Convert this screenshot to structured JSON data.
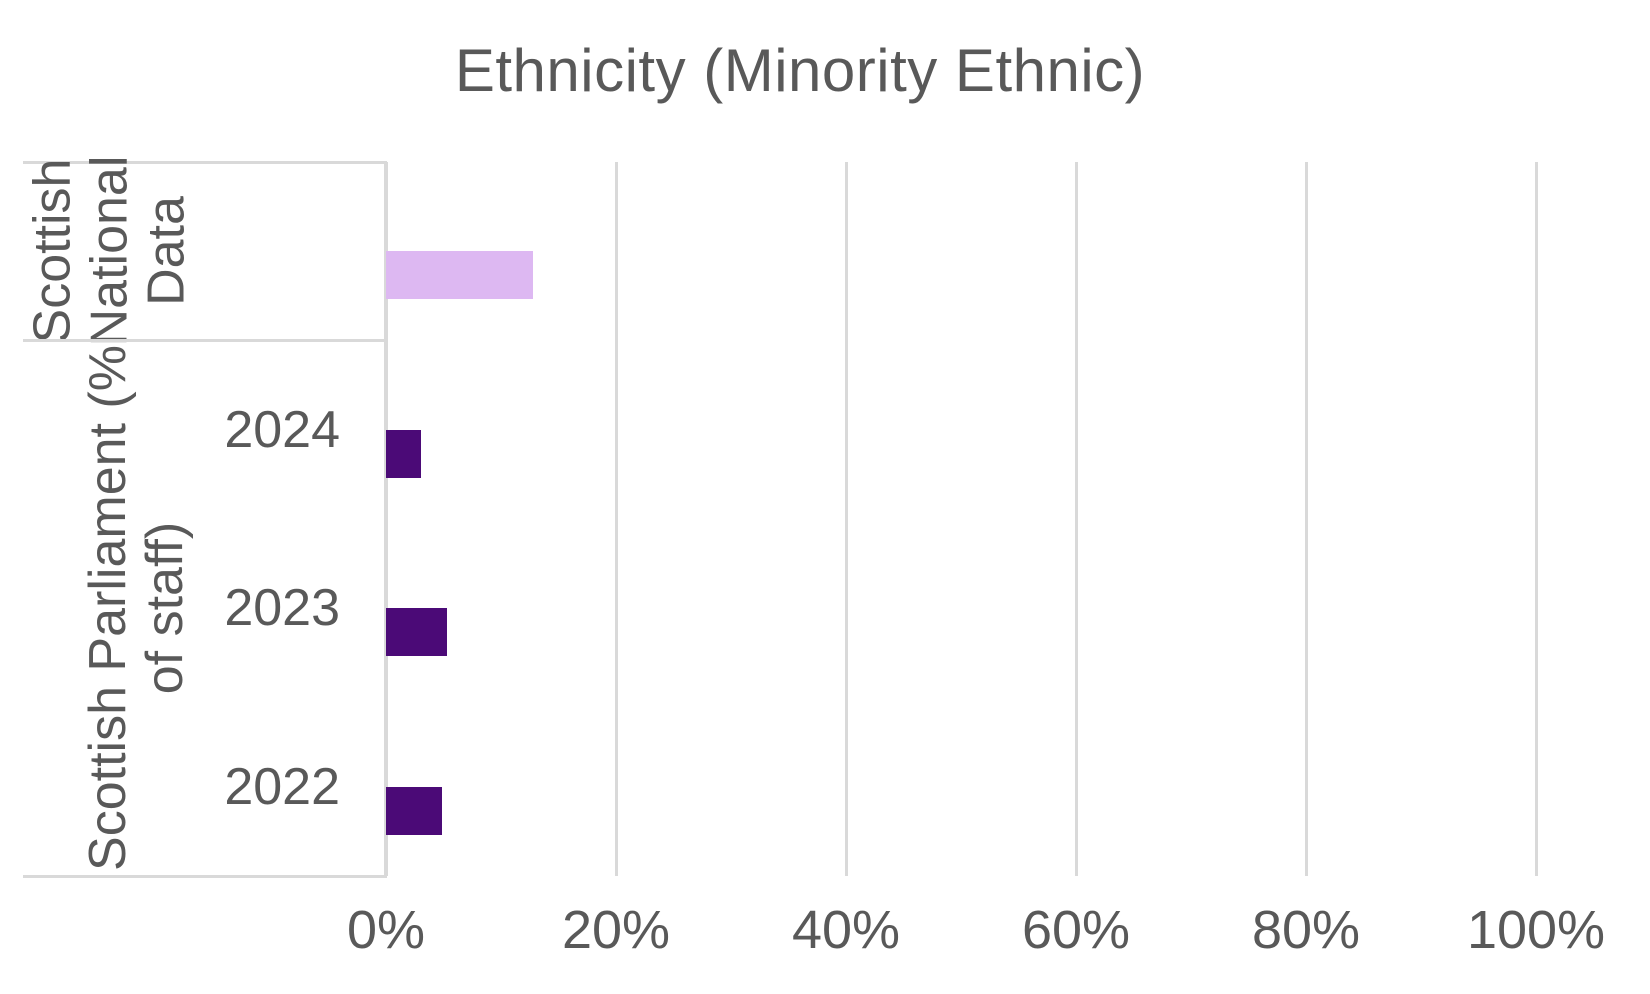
{
  "title": "Ethnicity (Minority Ethnic)",
  "colors": {
    "title_text": "#595959",
    "axis_text": "#595959",
    "gridline": "#D9D9D9",
    "axis_line": "#D9D9D9",
    "parliament_bar": "#4B0A77",
    "national_bar": "#DDB8F2",
    "background": "#FFFFFF"
  },
  "chart_data": {
    "type": "bar",
    "orientation": "horizontal",
    "title": "Ethnicity (Minority Ethnic)",
    "xlabel": "",
    "ylabel": "",
    "xlim": [
      0,
      100
    ],
    "grid": true,
    "legend": false,
    "x_ticks": [
      {
        "label": "0%",
        "value": 0
      },
      {
        "label": "20%",
        "value": 20
      },
      {
        "label": "40%",
        "value": 40
      },
      {
        "label": "60%",
        "value": 60
      },
      {
        "label": "80%",
        "value": 80
      },
      {
        "label": "100%",
        "value": 100
      }
    ],
    "groups": [
      {
        "label": "Scottish National Data",
        "lines": [
          "Scottish",
          "National",
          "Data"
        ],
        "rows": [
          {
            "label": "",
            "value": 12.8,
            "series": "Scottish National Data",
            "color": "#DDB8F2"
          }
        ]
      },
      {
        "label": "Scottish Parliament (% of staff)",
        "lines": [
          "Scottish Parliament (%",
          "of staff)"
        ],
        "rows": [
          {
            "label": "2024",
            "value": 3.0,
            "series": "Scottish Parliament",
            "color": "#4B0A77"
          },
          {
            "label": "2023",
            "value": 5.3,
            "series": "Scottish Parliament",
            "color": "#4B0A77"
          },
          {
            "label": "2022",
            "value": 4.9,
            "series": "Scottish Parliament",
            "color": "#4B0A77"
          }
        ]
      }
    ]
  }
}
